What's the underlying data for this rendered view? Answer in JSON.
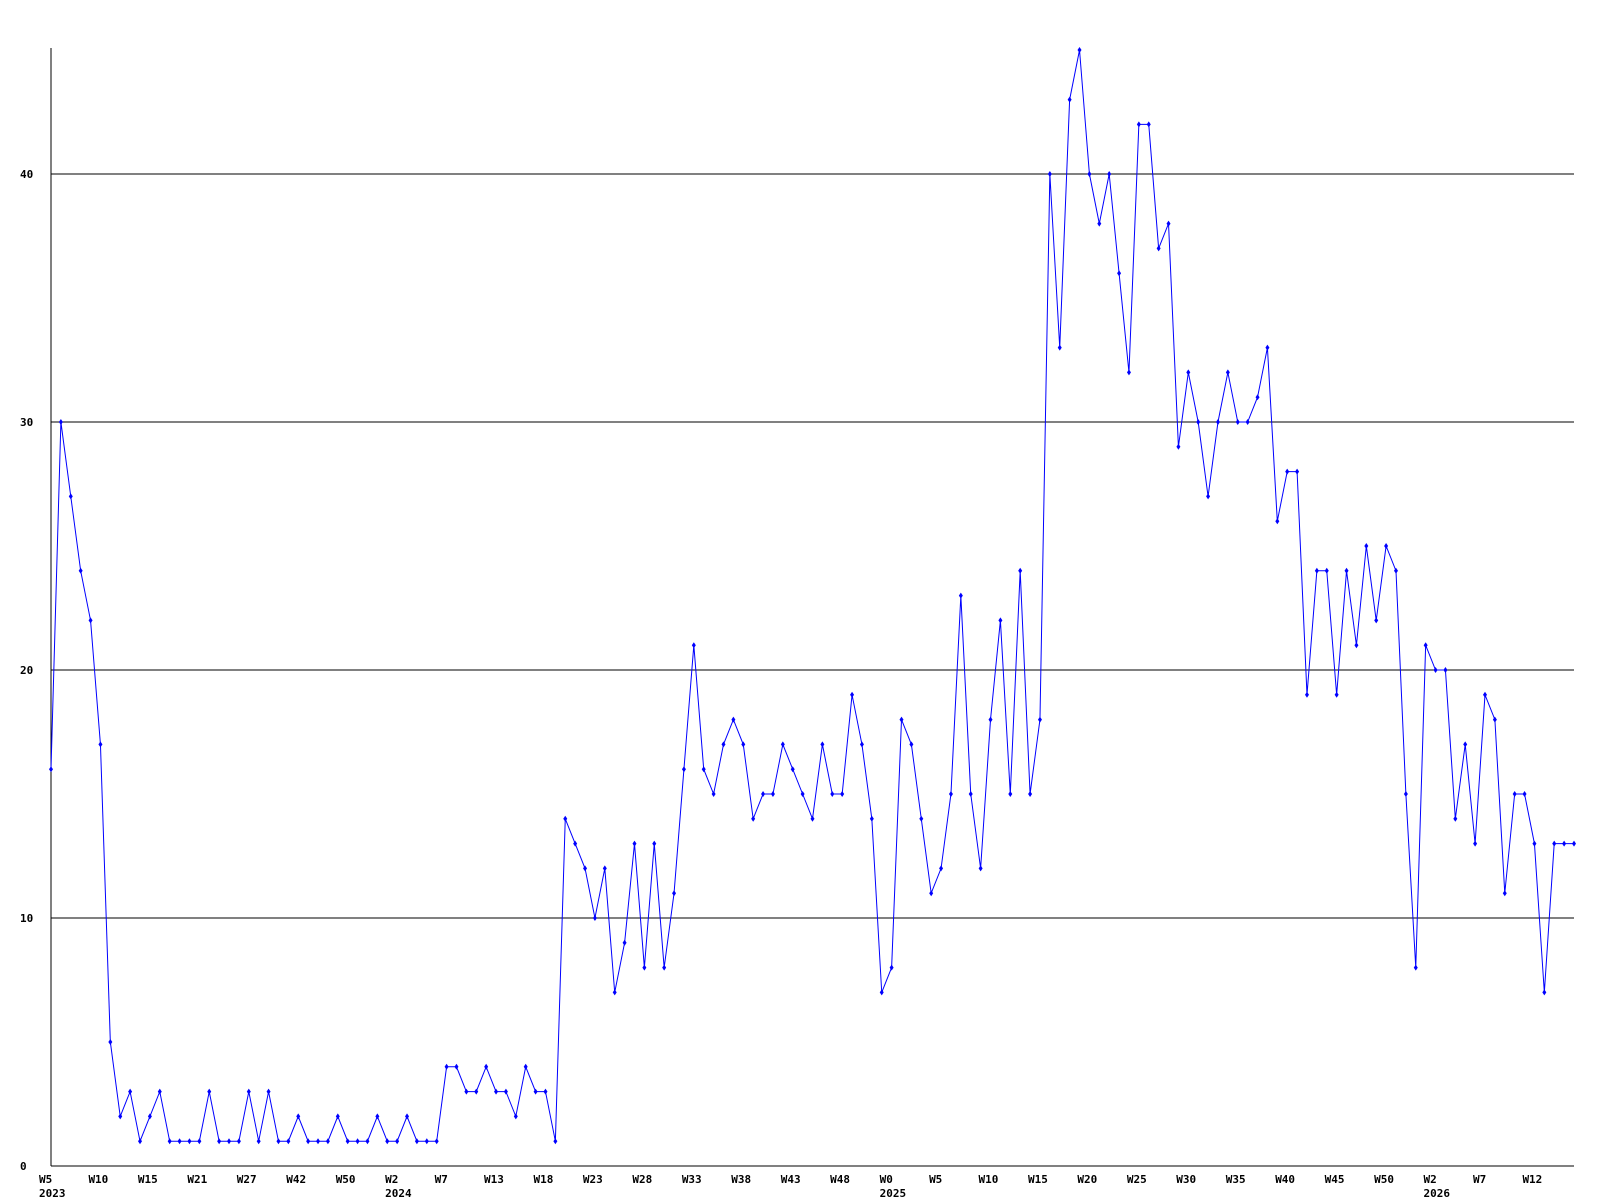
{
  "chart_data": {
    "type": "line",
    "categories": [
      "W5",
      null,
      null,
      null,
      null,
      "W10",
      null,
      null,
      null,
      null,
      "W15",
      null,
      null,
      null,
      null,
      "W21",
      null,
      null,
      null,
      null,
      "W27",
      null,
      null,
      null,
      null,
      "W42",
      null,
      null,
      null,
      null,
      "W50",
      null,
      null,
      null,
      null,
      "W2",
      null,
      null,
      null,
      null,
      "W7",
      null,
      null,
      null,
      null,
      "W13",
      null,
      null,
      null,
      null,
      "W18",
      null,
      null,
      null,
      null,
      "W23",
      null,
      null,
      null,
      null,
      "W28",
      null,
      null,
      null,
      null,
      "W33",
      null,
      null,
      null,
      null,
      "W38",
      null,
      null,
      null,
      null,
      "W43",
      null,
      null,
      null,
      null,
      "W48",
      null,
      null,
      null,
      null,
      "W0",
      null,
      null,
      null,
      null,
      "W5",
      null,
      null,
      null,
      null,
      "W10",
      null,
      null,
      null,
      null,
      "W15",
      null,
      null,
      null,
      null,
      "W20",
      null,
      null,
      null,
      null,
      "W25",
      null,
      null,
      null,
      null,
      "W30",
      null,
      null,
      null,
      null,
      "W35",
      null,
      null,
      null,
      null,
      "W40",
      null,
      null,
      null,
      null,
      "W45",
      null,
      null,
      null,
      null,
      "W50",
      null,
      null,
      null,
      null,
      "W2",
      null,
      null,
      null,
      null,
      "W7",
      null,
      null,
      null,
      null,
      "W12",
      null,
      null,
      null,
      null
    ],
    "years": [
      "2023",
      null,
      null,
      null,
      null,
      null,
      null,
      null,
      null,
      null,
      null,
      null,
      null,
      null,
      null,
      null,
      null,
      null,
      null,
      null,
      null,
      null,
      null,
      null,
      null,
      null,
      null,
      null,
      null,
      null,
      null,
      null,
      null,
      null,
      null,
      "2024",
      null,
      null,
      null,
      null,
      null,
      null,
      null,
      null,
      null,
      null,
      null,
      null,
      null,
      null,
      null,
      null,
      null,
      null,
      null,
      null,
      null,
      null,
      null,
      null,
      null,
      null,
      null,
      null,
      null,
      null,
      null,
      null,
      null,
      null,
      null,
      null,
      null,
      null,
      null,
      null,
      null,
      null,
      null,
      null,
      null,
      null,
      null,
      null,
      null,
      "2025",
      null,
      null,
      null,
      null,
      null,
      null,
      null,
      null,
      null,
      null,
      null,
      null,
      null,
      null,
      null,
      null,
      null,
      null,
      null,
      null,
      null,
      null,
      null,
      null,
      null,
      null,
      null,
      null,
      null,
      null,
      null,
      null,
      null,
      null,
      null,
      null,
      null,
      null,
      null,
      null,
      null,
      null,
      null,
      null,
      null,
      null,
      null,
      null,
      null,
      null,
      null,
      null,
      null,
      null,
      "2026",
      null,
      null,
      null,
      null,
      null,
      null,
      null,
      null,
      null,
      null,
      null,
      null,
      null,
      null
    ],
    "series": [
      {
        "color": "#0000ff",
        "values": [
          16,
          30,
          27,
          24,
          22,
          17,
          5,
          2,
          3,
          1,
          2,
          3,
          1,
          1,
          1,
          1,
          3,
          1,
          1,
          1,
          3,
          1,
          3,
          1,
          1,
          2,
          1,
          1,
          1,
          2,
          1,
          1,
          1,
          2,
          1,
          1,
          2,
          1,
          1,
          1,
          4,
          4,
          3,
          3,
          4,
          3,
          3,
          2,
          4,
          3,
          3,
          1,
          14,
          13,
          12,
          10,
          12,
          7,
          9,
          13,
          8,
          13,
          8,
          11,
          16,
          21,
          16,
          15,
          17,
          18,
          17,
          14,
          15,
          15,
          17,
          16,
          15,
          14,
          17,
          15,
          15,
          19,
          17,
          14,
          7,
          8,
          18,
          17,
          14,
          11,
          12,
          15,
          23,
          15,
          12,
          18,
          22,
          15,
          24,
          15,
          18,
          40,
          33,
          43,
          45,
          40,
          38,
          40,
          36,
          32,
          42,
          42,
          37,
          38,
          29,
          32,
          30,
          27,
          30,
          32,
          30,
          30,
          31,
          33,
          26,
          28,
          28,
          19,
          24,
          24,
          19,
          24,
          21,
          25,
          22,
          25,
          24,
          15,
          8,
          21,
          20,
          20,
          14,
          17,
          13,
          19,
          18,
          11,
          15,
          15,
          13,
          7,
          13,
          13,
          13
        ]
      }
    ],
    "ylim": [
      0,
      45
    ],
    "yticks": [
      0,
      10,
      20,
      30,
      40
    ],
    "grid": true
  }
}
